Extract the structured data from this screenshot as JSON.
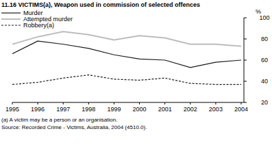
{
  "chart_data": {
    "type": "line",
    "title": "11.16 VICTIMS(a), Weapon used in commission of selected offences",
    "y_label": "%",
    "annotations": [
      "(a) A victim may be a person or an organisation.",
      "Source: Recorded Crime - Victims, Australia, 2004 (4510.0)."
    ],
    "x": [
      1995,
      1996,
      1997,
      1998,
      1999,
      2000,
      2001,
      2002,
      2003,
      2004
    ],
    "xlim": [
      1995,
      2004
    ],
    "xticks": [
      1995,
      1996,
      1997,
      1998,
      1999,
      2000,
      2001,
      2002,
      2003,
      2004
    ],
    "ylim": [
      20,
      100
    ],
    "yticks": [
      20,
      40,
      60,
      80,
      100
    ],
    "grid": false,
    "legend": "upper left",
    "series": [
      {
        "name": "Murder",
        "color": "#1a1a1a",
        "line_style": "solid",
        "values": [
          66,
          78,
          75,
          71,
          65,
          61,
          60,
          53,
          58,
          60
        ]
      },
      {
        "name": "Attempted murder",
        "color": "#bdbdbd",
        "line_style": "solid",
        "values": [
          75,
          82,
          87,
          84,
          79,
          83,
          81,
          75,
          75,
          73
        ]
      },
      {
        "name": "Robbery(a)",
        "color": "#1a1a1a",
        "line_style": "dashed",
        "values": [
          37,
          39,
          43,
          46,
          42,
          41,
          43,
          38,
          37,
          37
        ]
      }
    ]
  }
}
